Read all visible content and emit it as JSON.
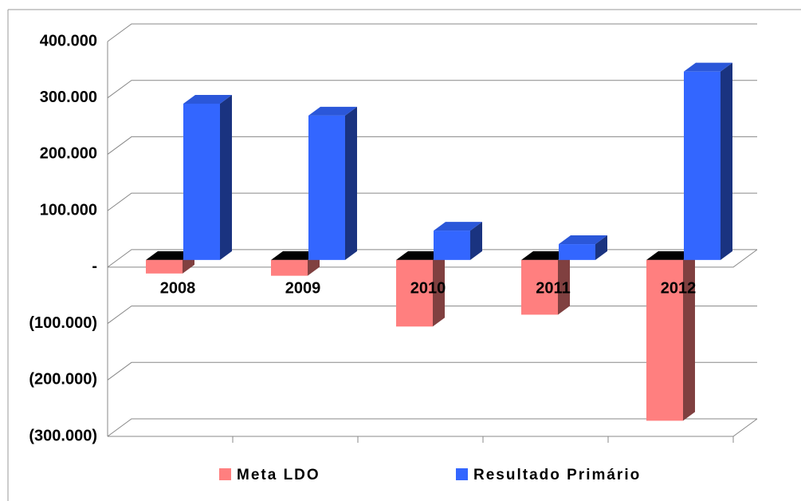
{
  "chart_data": {
    "type": "bar3d",
    "categories": [
      "2008",
      "2009",
      "2010",
      "2011",
      "2012"
    ],
    "series": [
      {
        "name": "Meta LDO",
        "color": "#ff7f7f",
        "values": [
          -24000,
          -28000,
          -118000,
          -97000,
          -285000
        ]
      },
      {
        "name": "Resultado Primário",
        "color": "#3366ff",
        "values": [
          277000,
          256000,
          52000,
          28000,
          334000
        ]
      }
    ],
    "ylim": [
      -300000,
      400000
    ],
    "yticks": [
      {
        "value": 400000,
        "label": "400.000"
      },
      {
        "value": 300000,
        "label": "300.000"
      },
      {
        "value": 200000,
        "label": "200.000"
      },
      {
        "value": 100000,
        "label": "100.000"
      },
      {
        "value": 0,
        "label": "-"
      },
      {
        "value": -100000,
        "label": "(100.000)"
      },
      {
        "value": -200000,
        "label": "(200.000)"
      },
      {
        "value": -300000,
        "label": "(300.000)"
      }
    ],
    "grid": true,
    "legend": "bottom"
  }
}
